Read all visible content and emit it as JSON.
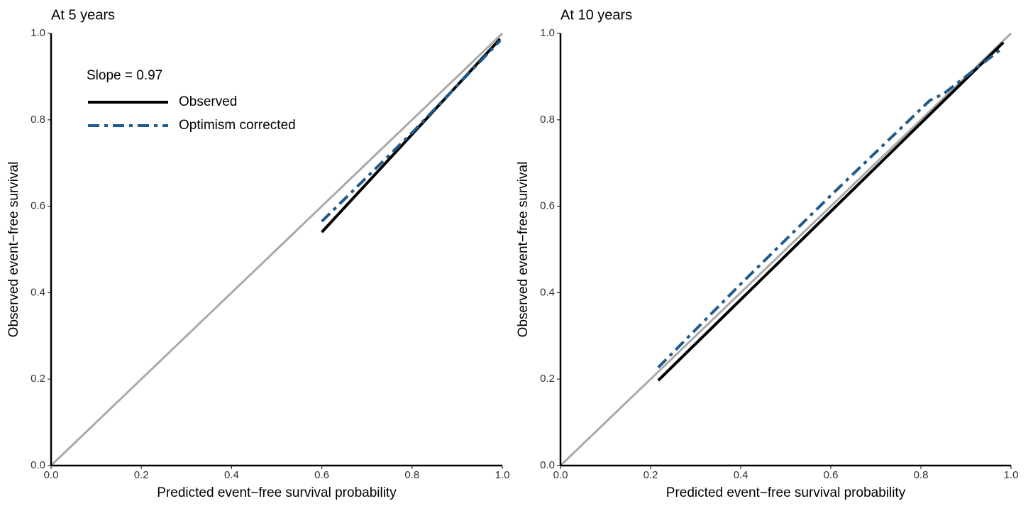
{
  "chart_data": [
    {
      "type": "line",
      "title": "At 5 years",
      "xlabel": "Predicted event−free survival probability",
      "ylabel": "Observed event−free survival",
      "annotation": "Slope = 0.97",
      "legend": "upper left",
      "xlim": [
        0,
        1
      ],
      "ylim": [
        0,
        1
      ],
      "xticks": [
        {
          "value": 0,
          "label": "0.0"
        },
        {
          "value": 0.2,
          "label": "0.2"
        },
        {
          "value": 0.4,
          "label": "0.4"
        },
        {
          "value": 0.6,
          "label": "0.6"
        },
        {
          "value": 0.8,
          "label": "0.8"
        },
        {
          "value": 1,
          "label": "1.0"
        }
      ],
      "yticks": [
        {
          "value": 0,
          "label": "0.0"
        },
        {
          "value": 0.2,
          "label": "0.2"
        },
        {
          "value": 0.4,
          "label": "0.4"
        },
        {
          "value": 0.6,
          "label": "0.6"
        },
        {
          "value": 0.8,
          "label": "0.8"
        },
        {
          "value": 1,
          "label": "1.0"
        }
      ],
      "reference_line": true,
      "series": [
        {
          "name": "Observed",
          "color": "#000000",
          "style": "solid",
          "x": [
            0.6,
            0.995
          ],
          "values": [
            0.54,
            0.987
          ]
        },
        {
          "name": "Optimism corrected",
          "color": "#1f5a8c",
          "style": "dashdot",
          "x": [
            0.6,
            0.8,
            0.995
          ],
          "values": [
            0.565,
            0.77,
            0.983
          ]
        }
      ]
    },
    {
      "type": "line",
      "title": "At 10 years",
      "xlabel": "Predicted event−free survival probability",
      "ylabel": "Observed event−free survival",
      "xlim": [
        0,
        1
      ],
      "ylim": [
        0,
        1
      ],
      "xticks": [
        {
          "value": 0,
          "label": "0.0"
        },
        {
          "value": 0.2,
          "label": "0.2"
        },
        {
          "value": 0.4,
          "label": "0.4"
        },
        {
          "value": 0.6,
          "label": "0.6"
        },
        {
          "value": 0.8,
          "label": "0.8"
        },
        {
          "value": 1,
          "label": "1.0"
        }
      ],
      "yticks": [
        {
          "value": 0,
          "label": "0.0"
        },
        {
          "value": 0.2,
          "label": "0.2"
        },
        {
          "value": 0.4,
          "label": "0.4"
        },
        {
          "value": 0.6,
          "label": "0.6"
        },
        {
          "value": 0.8,
          "label": "0.8"
        },
        {
          "value": 1,
          "label": "1.0"
        }
      ],
      "reference_line": true,
      "series": [
        {
          "color": "#000000",
          "style": "solid",
          "x": [
            0.217,
            0.983
          ],
          "values": [
            0.197,
            0.979
          ]
        },
        {
          "color": "#1f5a8c",
          "style": "dashdot",
          "x": [
            0.217,
            0.4,
            0.6,
            0.82,
            0.85,
            0.98
          ],
          "values": [
            0.227,
            0.42,
            0.625,
            0.845,
            0.86,
            0.965
          ]
        }
      ]
    }
  ]
}
